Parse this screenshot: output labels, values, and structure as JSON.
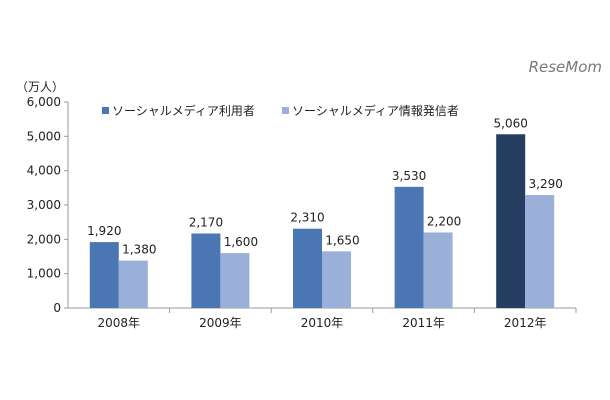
{
  "brand": "ReseMom",
  "colors": {
    "series_0": "#4a77b3",
    "series_1": "#9bb0d9",
    "highlight": "#243d60",
    "axis": "#9a9a9a"
  },
  "chart_data": {
    "type": "bar",
    "categories": [
      "2008年",
      "2009年",
      "2010年",
      "2011年",
      "2012年"
    ],
    "series": [
      {
        "name": "ソーシャルメディア利用者",
        "values": [
          1920,
          2170,
          2310,
          3530,
          5060
        ]
      },
      {
        "name": "ソーシャルメディア情報発信者",
        "values": [
          1380,
          1600,
          1650,
          2200,
          3290
        ]
      }
    ],
    "value_labels": [
      [
        "1,920",
        "2,170",
        "2,310",
        "3,530",
        "5,060"
      ],
      [
        "1,380",
        "1,600",
        "1,650",
        "2,200",
        "3,290"
      ]
    ],
    "highlight_bar": {
      "series": 0,
      "category": 4
    },
    "ylabel": "（万人）",
    "ylim": [
      0,
      6000
    ],
    "yticks": [
      0,
      1000,
      2000,
      3000,
      4000,
      5000,
      6000
    ],
    "ytick_labels": [
      "0",
      "1,000",
      "2,000",
      "3,000",
      "4,000",
      "5,000",
      "6,000"
    ],
    "grid": false,
    "legend_position": "top-left"
  }
}
